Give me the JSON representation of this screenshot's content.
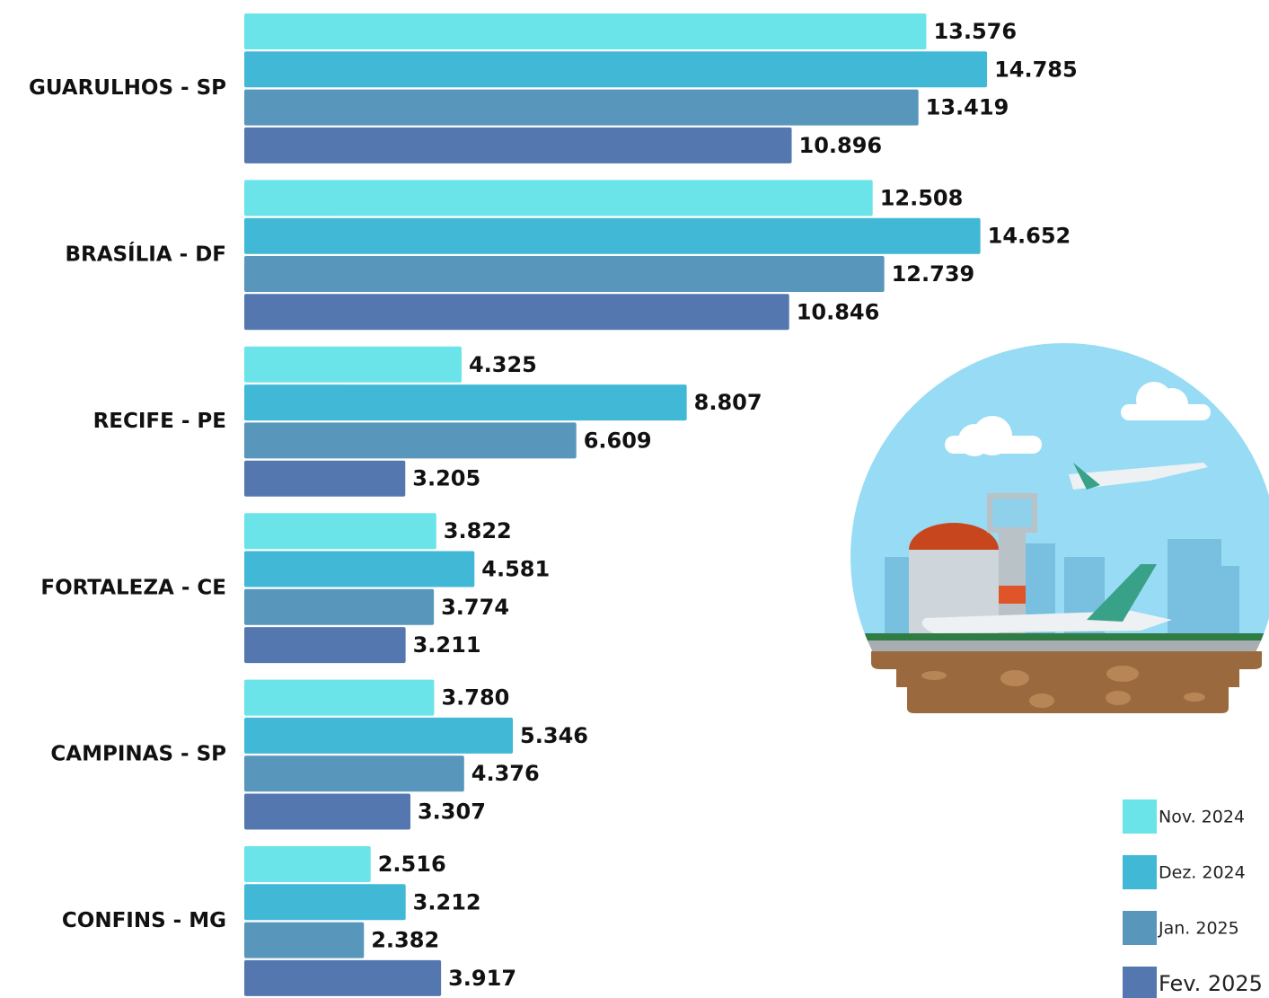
{
  "chart_data": {
    "type": "bar",
    "orientation": "horizontal",
    "categories": [
      "GUARULHOS - SP",
      "BRASÍLIA - DF",
      "RECIFE - PE",
      "FORTALEZA - CE",
      "CAMPINAS - SP",
      "CONFINS - MG"
    ],
    "series": [
      {
        "name": "Nov. 2024",
        "color": "#6ae4e8",
        "values": [
          13576,
          12508,
          4325,
          3822,
          3780,
          2516
        ],
        "value_labels": [
          "13.576",
          "12.508",
          "4.325",
          "3.822",
          "3.780",
          "2.516"
        ]
      },
      {
        "name": "Dez. 2024",
        "color": "#41b8d6",
        "values": [
          14785,
          14652,
          8807,
          4581,
          5346,
          3212
        ],
        "value_labels": [
          "14.785",
          "14.652",
          "8.807",
          "4.581",
          "5.346",
          "3.212"
        ]
      },
      {
        "name": "Jan. 2025",
        "color": "#5896bc",
        "values": [
          13419,
          12739,
          6609,
          3774,
          4376,
          2382
        ],
        "value_labels": [
          "13.419",
          "12.739",
          "6.609",
          "3.774",
          "4.376",
          "2.382"
        ]
      },
      {
        "name": "Fev. 2025",
        "color": "#5577b0",
        "values": [
          10896,
          10846,
          3205,
          3211,
          3307,
          3917
        ],
        "value_labels": [
          "10.896",
          "10.846",
          "3.205",
          "3.211",
          "3.307",
          "3.917"
        ]
      }
    ]
  }
}
